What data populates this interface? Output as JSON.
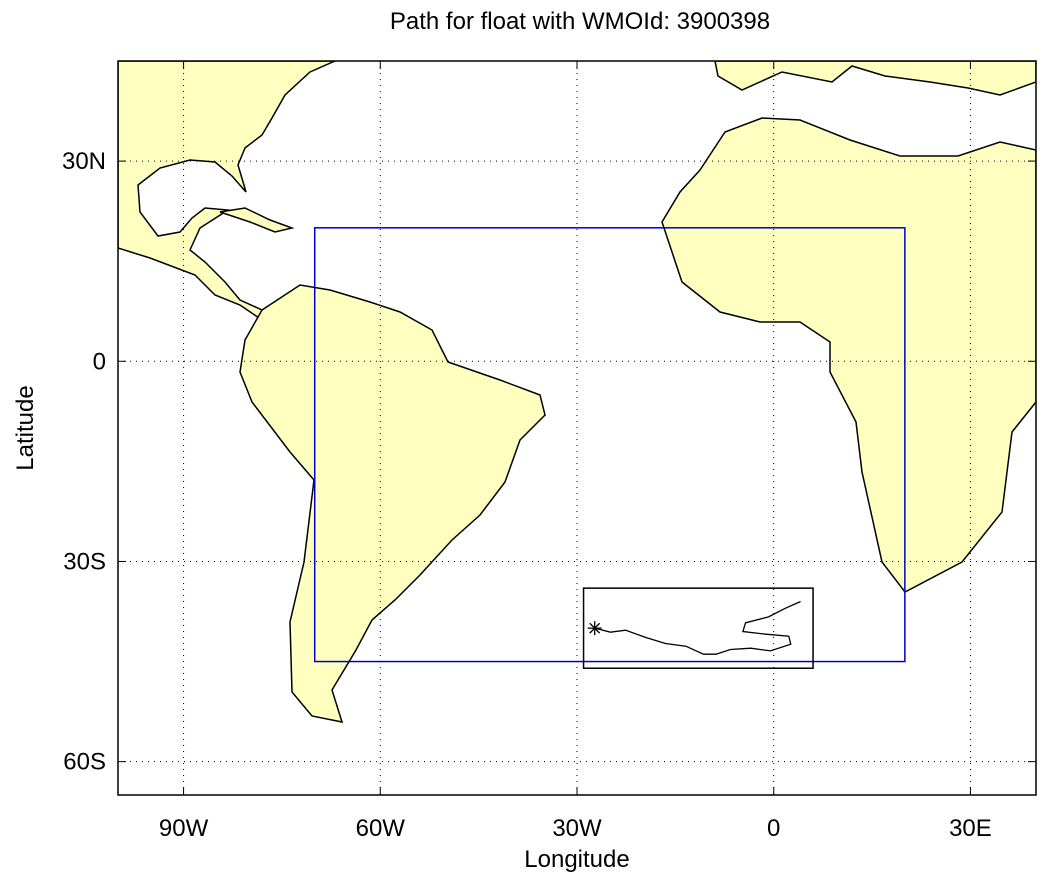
{
  "chart_data": {
    "type": "map",
    "title": "Path for float with WMOId: 3900398",
    "x_label": "Longitude",
    "y_label": "Latitude",
    "xlim": [
      -100,
      40
    ],
    "ylim": [
      -65,
      45
    ],
    "xticks": [
      {
        "value": -90,
        "label": "90W"
      },
      {
        "value": -60,
        "label": "60W"
      },
      {
        "value": -30,
        "label": "30W"
      },
      0,
      {
        "value": 30,
        "label": "30E"
      }
    ],
    "yticks": [
      {
        "value": -60,
        "label": "60S"
      },
      {
        "value": -30,
        "label": "30S"
      },
      0,
      {
        "value": 30,
        "label": "30N"
      }
    ],
    "grid": true,
    "region": {
      "color": "#0000cc",
      "lon": [
        -70,
        20
      ],
      "lat": [
        -45,
        20
      ]
    },
    "path_box": {
      "color": "#000000",
      "lon": [
        -29,
        6
      ],
      "lat": [
        -46,
        -34
      ]
    },
    "path": {
      "color": "#000000",
      "lon": [
        -27.3,
        -24.9,
        -22.6,
        -19.5,
        -16.5,
        -13.4,
        -10.7,
        -8.8,
        -6.6,
        -3.5,
        -0.5,
        2.6,
        2.3,
        -1.2,
        -4.7,
        -4.3,
        -0.8,
        1.8,
        4.1
      ],
      "lat": [
        -40.0,
        -40.6,
        -40.3,
        -41.4,
        -42.3,
        -42.7,
        -43.9,
        -43.9,
        -43.2,
        -43.0,
        -43.4,
        -42.4,
        -41.2,
        -40.9,
        -40.5,
        -39.2,
        -38.3,
        -37.0,
        -36.0
      ]
    }
  }
}
